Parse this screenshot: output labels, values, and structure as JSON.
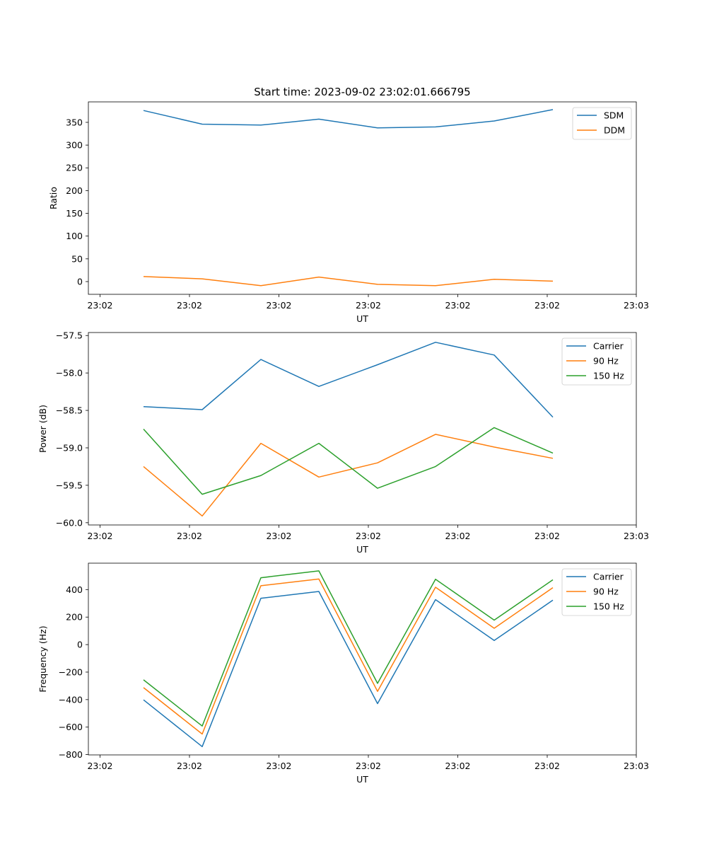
{
  "chart_data": [
    {
      "type": "line",
      "title": "Start time: 2023-09-02 23:02:01.666795",
      "xlabel": "UT",
      "ylabel": "Ratio",
      "x_tick_labels": [
        "23:02",
        "23:02",
        "23:02",
        "23:02",
        "23:02",
        "23:02",
        "23:03"
      ],
      "y_ticks": [
        0,
        50,
        100,
        150,
        200,
        250,
        300,
        350
      ],
      "y_tick_labels": [
        "0",
        "50",
        "100",
        "150",
        "200",
        "250",
        "300",
        "350"
      ],
      "ylim": [
        -28,
        395
      ],
      "series": [
        {
          "name": "SDM",
          "color": "#1f77b4",
          "values": [
            376,
            346,
            344,
            357,
            338,
            340,
            353,
            378
          ]
        },
        {
          "name": "DDM",
          "color": "#ff7f0e",
          "values": [
            11,
            6,
            -9,
            10,
            -6,
            -9,
            5,
            1
          ]
        }
      ]
    },
    {
      "type": "line",
      "xlabel": "UT",
      "ylabel": "Power (dB)",
      "x_tick_labels": [
        "23:02",
        "23:02",
        "23:02",
        "23:02",
        "23:02",
        "23:02",
        "23:03"
      ],
      "y_ticks": [
        -60.0,
        -59.5,
        -59.0,
        -58.5,
        -58.0,
        -57.5
      ],
      "y_tick_labels": [
        "−60.0",
        "−59.5",
        "−59.0",
        "−58.5",
        "−58.0",
        "−57.5"
      ],
      "ylim": [
        -60.03,
        -57.46
      ],
      "series": [
        {
          "name": "Carrier",
          "color": "#1f77b4",
          "values": [
            -58.45,
            -58.49,
            -57.82,
            -58.18,
            -57.89,
            -57.59,
            -57.76,
            -58.59
          ]
        },
        {
          "name": "90 Hz",
          "color": "#ff7f0e",
          "values": [
            -59.25,
            -59.91,
            -58.94,
            -59.39,
            -59.2,
            -58.82,
            -58.99,
            -59.14
          ]
        },
        {
          "name": "150 Hz",
          "color": "#2ca02c",
          "values": [
            -58.75,
            -59.62,
            -59.37,
            -58.94,
            -59.54,
            -59.25,
            -58.73,
            -59.07
          ]
        }
      ]
    },
    {
      "type": "line",
      "xlabel": "UT",
      "ylabel": "Frequency (Hz)",
      "x_tick_labels": [
        "23:02",
        "23:02",
        "23:02",
        "23:02",
        "23:02",
        "23:02",
        "23:03"
      ],
      "y_ticks": [
        -800,
        -600,
        -400,
        -200,
        0,
        200,
        400
      ],
      "y_tick_labels": [
        "−800",
        "−600",
        "−400",
        "−200",
        "0",
        "200",
        "400"
      ],
      "ylim": [
        -802,
        592
      ],
      "series": [
        {
          "name": "Carrier",
          "color": "#1f77b4",
          "values": [
            -402,
            -742,
            337,
            386,
            -429,
            327,
            30,
            323
          ]
        },
        {
          "name": "90 Hz",
          "color": "#ff7f0e",
          "values": [
            -313,
            -650,
            428,
            477,
            -340,
            417,
            119,
            414
          ]
        },
        {
          "name": "150 Hz",
          "color": "#2ca02c",
          "values": [
            -256,
            -592,
            486,
            536,
            -282,
            475,
            178,
            471
          ]
        }
      ]
    }
  ]
}
